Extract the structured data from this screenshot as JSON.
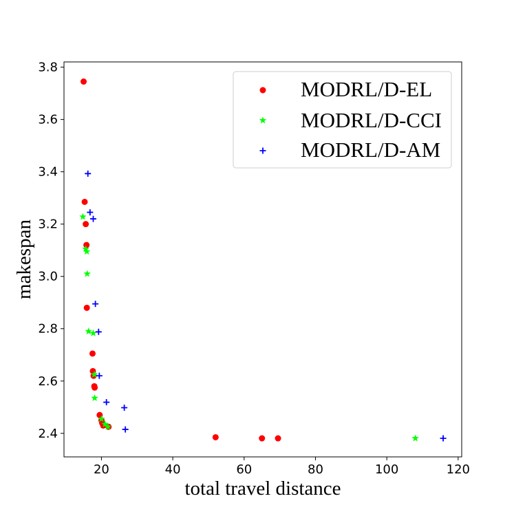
{
  "chart_data": {
    "type": "scatter",
    "xlabel": "total travel distance",
    "ylabel": "makespan",
    "xlim": [
      9.5,
      121
    ],
    "ylim": [
      2.31,
      3.82
    ],
    "xticks": [
      20,
      40,
      60,
      80,
      100,
      120
    ],
    "yticks": [
      2.4,
      2.6,
      2.8,
      3.0,
      3.2,
      3.4,
      3.6,
      3.8
    ],
    "grid": false,
    "legend_position": "top-right",
    "series": [
      {
        "name": "MODRL/D-EL",
        "marker": "circle",
        "color": "#ff0000",
        "points": [
          [
            15.0,
            3.745
          ],
          [
            15.3,
            3.285
          ],
          [
            15.6,
            3.2
          ],
          [
            15.8,
            3.12
          ],
          [
            15.9,
            2.88
          ],
          [
            17.5,
            2.705
          ],
          [
            17.6,
            2.638
          ],
          [
            17.8,
            2.62
          ],
          [
            18.0,
            2.58
          ],
          [
            18.1,
            2.575
          ],
          [
            19.5,
            2.47
          ],
          [
            20.0,
            2.45
          ],
          [
            20.2,
            2.44
          ],
          [
            20.5,
            2.43
          ],
          [
            22.0,
            2.425
          ],
          [
            52.0,
            2.385
          ],
          [
            65.0,
            2.381
          ],
          [
            69.5,
            2.381
          ]
        ]
      },
      {
        "name": "MODRL/D-CCI",
        "marker": "star",
        "color": "#00ff00",
        "points": [
          [
            14.8,
            3.228
          ],
          [
            15.6,
            3.105
          ],
          [
            15.9,
            3.095
          ],
          [
            16.0,
            3.01
          ],
          [
            16.4,
            2.79
          ],
          [
            17.7,
            2.783
          ],
          [
            18.0,
            2.625
          ],
          [
            18.1,
            2.535
          ],
          [
            20.0,
            2.455
          ],
          [
            21.0,
            2.435
          ],
          [
            21.8,
            2.425
          ],
          [
            108.0,
            2.381
          ]
        ]
      },
      {
        "name": "MODRL/D-AM",
        "marker": "plus",
        "color": "#0000ff",
        "points": [
          [
            16.2,
            3.393
          ],
          [
            16.8,
            3.245
          ],
          [
            17.7,
            3.22
          ],
          [
            18.3,
            2.895
          ],
          [
            19.2,
            2.788
          ],
          [
            19.4,
            2.62
          ],
          [
            21.4,
            2.519
          ],
          [
            26.4,
            2.498
          ],
          [
            26.7,
            2.415
          ],
          [
            115.8,
            2.381
          ]
        ]
      }
    ]
  }
}
